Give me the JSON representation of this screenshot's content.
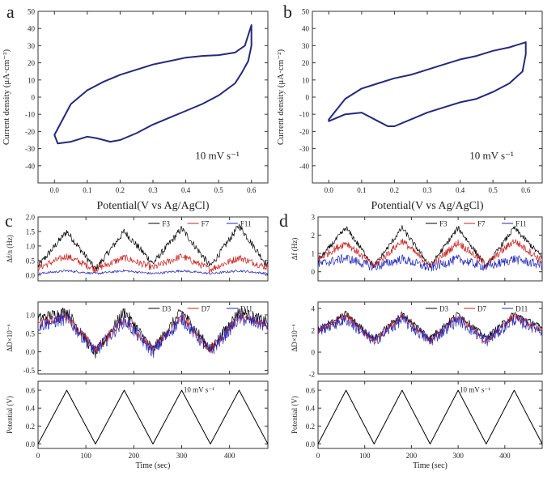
{
  "colors": {
    "cv": "#24297a",
    "black": "#000000",
    "red": "#cc1f1f",
    "blue": "#2228b8",
    "rate_text": "#3b3fa5"
  },
  "chart_data": [
    {
      "id": "a",
      "panel_label": "a",
      "type": "line",
      "title": "",
      "xlabel": "Potential(V vs Ag/AgCl)",
      "ylabel": "Current density (μA·cm⁻²)",
      "xlim": [
        -0.05,
        0.65
      ],
      "ylim": [
        -50,
        50
      ],
      "xticks": [
        0.0,
        0.1,
        0.2,
        0.3,
        0.4,
        0.5,
        0.6
      ],
      "yticks": [
        -40,
        -30,
        -20,
        -10,
        0,
        10,
        20,
        30,
        40,
        50
      ],
      "annotation": "10 mV s⁻¹",
      "series": [
        {
          "x": [
            0.0,
            0.05,
            0.1,
            0.15,
            0.2,
            0.25,
            0.3,
            0.35,
            0.4,
            0.45,
            0.5,
            0.55,
            0.58,
            0.6,
            0.6,
            0.59,
            0.57,
            0.55,
            0.5,
            0.45,
            0.4,
            0.35,
            0.3,
            0.25,
            0.2,
            0.17,
            0.13,
            0.1,
            0.05,
            0.01,
            0.0
          ],
          "y": [
            -22,
            -4,
            4,
            9,
            13,
            16,
            19,
            21,
            23,
            24,
            24.5,
            26,
            30,
            42,
            30,
            21,
            14,
            8,
            1,
            -4,
            -8,
            -12,
            -16,
            -21,
            -25,
            -26,
            -24,
            -23,
            -26,
            -27,
            -22
          ]
        }
      ]
    },
    {
      "id": "b",
      "panel_label": "b",
      "type": "line",
      "title": "",
      "xlabel": "Potential(V vs Ag/AgCl)",
      "ylabel": "Current density (μA·cm⁻²)",
      "xlim": [
        -0.05,
        0.65
      ],
      "ylim": [
        -50,
        50
      ],
      "xticks": [
        0.0,
        0.1,
        0.2,
        0.3,
        0.4,
        0.5,
        0.6
      ],
      "yticks": [
        -40,
        -30,
        -20,
        -10,
        0,
        10,
        20,
        30,
        40,
        50
      ],
      "annotation": "10 mV s⁻¹",
      "series": [
        {
          "x": [
            0.0,
            0.05,
            0.1,
            0.15,
            0.2,
            0.25,
            0.3,
            0.35,
            0.4,
            0.45,
            0.5,
            0.55,
            0.6,
            0.6,
            0.59,
            0.55,
            0.5,
            0.45,
            0.4,
            0.35,
            0.3,
            0.25,
            0.2,
            0.18,
            0.15,
            0.1,
            0.05,
            0.0
          ],
          "y": [
            -13,
            -1,
            5,
            8,
            11,
            13,
            16,
            19,
            22,
            24,
            27,
            29,
            32,
            25,
            15,
            8,
            3,
            -1,
            -3,
            -6,
            -9,
            -13,
            -17,
            -17,
            -14,
            -9,
            -10,
            -14
          ]
        }
      ]
    },
    {
      "id": "c-freq",
      "panel_label": "c",
      "type": "line",
      "xlabel": "",
      "ylabel": "Δf/n (Hz)",
      "xlim": [
        0,
        480
      ],
      "ylim": [
        -0.2,
        2.0
      ],
      "yticks": [
        0.0,
        0.5,
        1.0,
        1.5,
        2.0
      ],
      "series": [
        {
          "name": "F3",
          "x": [
            0,
            60,
            120,
            180,
            240,
            300,
            360,
            420,
            480
          ],
          "y": [
            0.3,
            1.5,
            0.2,
            1.5,
            0.4,
            1.6,
            0.3,
            1.7,
            0.3
          ],
          "noise": 0.12
        },
        {
          "name": "F7",
          "x": [
            0,
            60,
            120,
            180,
            240,
            300,
            360,
            420,
            480
          ],
          "y": [
            0.25,
            0.65,
            0.2,
            0.6,
            0.25,
            0.65,
            0.2,
            0.6,
            0.25
          ],
          "noise": 0.12
        },
        {
          "name": "F11",
          "x": [
            0,
            60,
            120,
            180,
            240,
            300,
            360,
            420,
            480
          ],
          "y": [
            0.05,
            0.15,
            0.05,
            0.15,
            0.05,
            0.15,
            0.05,
            0.15,
            0.05
          ],
          "noise": 0.04
        }
      ]
    },
    {
      "id": "c-diss",
      "type": "line",
      "xlabel": "",
      "ylabel": "ΔD×10⁻⁶",
      "xlim": [
        0,
        480
      ],
      "ylim": [
        -0.6,
        1.35
      ],
      "yticks": [
        -0.5,
        0.0,
        0.5,
        1.0
      ],
      "series": [
        {
          "name": "D3",
          "x": [
            0,
            60,
            120,
            180,
            240,
            300,
            360,
            420,
            480
          ],
          "y": [
            0.9,
            1.1,
            -0.05,
            1.1,
            0.05,
            1.1,
            0.05,
            1.1,
            0.8
          ],
          "noise": 0.15
        },
        {
          "name": "D7",
          "x": [
            0,
            60,
            120,
            180,
            240,
            300,
            360,
            420,
            480
          ],
          "y": [
            0.75,
            0.95,
            0.05,
            0.9,
            0.05,
            0.95,
            0.05,
            0.95,
            0.75
          ],
          "noise": 0.12
        },
        {
          "name": "D11",
          "x": [
            0,
            60,
            120,
            180,
            240,
            300,
            360,
            420,
            480
          ],
          "y": [
            0.7,
            0.9,
            0.0,
            0.85,
            0.0,
            0.9,
            0.0,
            0.9,
            0.7
          ],
          "noise": 0.18
        }
      ]
    },
    {
      "id": "c-pot",
      "type": "line",
      "xlabel": "Time (sec)",
      "ylabel": "Potential (V)",
      "xlim": [
        0,
        480
      ],
      "ylim": [
        -0.05,
        0.7
      ],
      "xticks": [
        0,
        100,
        200,
        300,
        400
      ],
      "yticks": [
        0.0,
        0.2,
        0.4,
        0.6
      ],
      "annotation": "10 mV s⁻¹",
      "series": [
        {
          "x": [
            0,
            60,
            120,
            180,
            240,
            300,
            360,
            420,
            480
          ],
          "y": [
            0.0,
            0.6,
            0.0,
            0.6,
            0.0,
            0.6,
            0.0,
            0.6,
            0.0
          ]
        }
      ]
    },
    {
      "id": "d-freq",
      "panel_label": "d",
      "type": "line",
      "xlabel": "",
      "ylabel": "Δf (Hz)",
      "xlim": [
        0,
        480
      ],
      "ylim": [
        -0.5,
        3.0
      ],
      "yticks": [
        0,
        1,
        2,
        3
      ],
      "series": [
        {
          "name": "F3",
          "x": [
            0,
            60,
            120,
            180,
            240,
            300,
            360,
            420,
            480
          ],
          "y": [
            0.6,
            2.4,
            0.3,
            2.4,
            0.3,
            2.4,
            0.3,
            2.4,
            0.8
          ],
          "noise": 0.15
        },
        {
          "name": "F7",
          "x": [
            0,
            60,
            120,
            180,
            240,
            300,
            360,
            420,
            480
          ],
          "y": [
            0.7,
            1.6,
            0.3,
            1.7,
            0.3,
            1.6,
            0.4,
            1.7,
            0.6
          ],
          "noise": 0.2
        },
        {
          "name": "F11",
          "x": [
            0,
            60,
            120,
            180,
            240,
            300,
            360,
            420,
            480
          ],
          "y": [
            0.4,
            0.75,
            0.25,
            0.7,
            0.2,
            0.7,
            0.25,
            0.7,
            0.35
          ],
          "noise": 0.25
        }
      ]
    },
    {
      "id": "d-diss",
      "type": "line",
      "xlabel": "",
      "ylabel": "ΔD×10⁻⁶",
      "xlim": [
        0,
        480
      ],
      "ylim": [
        -2,
        4.6
      ],
      "yticks": [
        -2,
        0,
        2,
        4
      ],
      "series": [
        {
          "name": "D3",
          "x": [
            0,
            60,
            120,
            180,
            240,
            300,
            360,
            420,
            480
          ],
          "y": [
            2.0,
            3.5,
            1.2,
            3.5,
            1.3,
            3.5,
            1.3,
            3.5,
            2.2
          ],
          "noise": 0.3
        },
        {
          "name": "D7",
          "x": [
            0,
            60,
            120,
            180,
            240,
            300,
            360,
            420,
            480
          ],
          "y": [
            2.0,
            3.3,
            1.0,
            3.3,
            1.0,
            3.3,
            1.0,
            3.3,
            2.0
          ],
          "noise": 0.35
        },
        {
          "name": "D11",
          "x": [
            0,
            60,
            120,
            180,
            240,
            300,
            360,
            420,
            480
          ],
          "y": [
            2.0,
            3.0,
            1.0,
            3.0,
            1.0,
            3.0,
            1.0,
            3.0,
            2.0
          ],
          "noise": 0.55
        }
      ]
    },
    {
      "id": "d-pot",
      "type": "line",
      "xlabel": "Time (sec)",
      "ylabel": "Potential (V)",
      "xlim": [
        0,
        480
      ],
      "ylim": [
        -0.05,
        0.7
      ],
      "xticks": [
        0,
        100,
        200,
        300,
        400
      ],
      "yticks": [
        0.0,
        0.2,
        0.4,
        0.6
      ],
      "annotation": "10 mV s⁻¹",
      "series": [
        {
          "x": [
            0,
            60,
            120,
            180,
            240,
            300,
            360,
            420,
            480
          ],
          "y": [
            0.0,
            0.6,
            0.0,
            0.6,
            0.0,
            0.6,
            0.0,
            0.6,
            0.0
          ]
        }
      ]
    }
  ]
}
